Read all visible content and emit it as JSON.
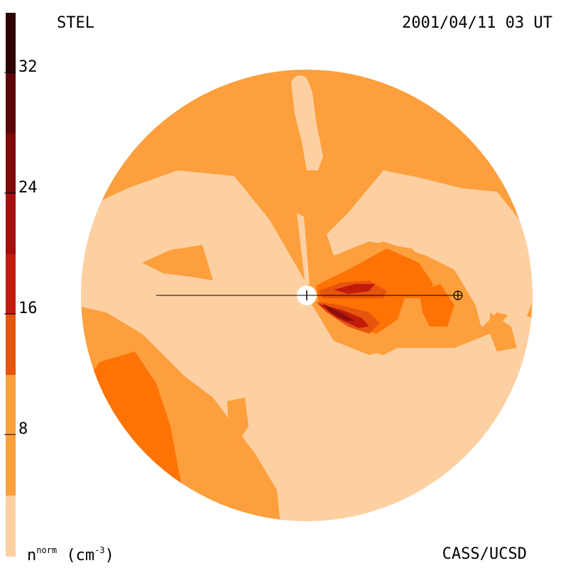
{
  "header": {
    "instrument": "STEL",
    "timestamp": "2001/04/11 03 UT"
  },
  "footer": {
    "credit": "CASS/UCSD",
    "units_base": "n",
    "units_sup": "norm",
    "units_paren_open": " (cm",
    "units_exp": "-3",
    "units_paren_close": ")"
  },
  "colorbar": {
    "tick_labels": [
      "32",
      "24",
      "16",
      "8"
    ],
    "colors": [
      "#fdd0a2",
      "#fd9f3c",
      "#fd7306",
      "#e6550d",
      "#c21b0c",
      "#a50f0f",
      "#7f0a0a",
      "#5a0505",
      "#2d0202"
    ]
  },
  "colors": {
    "level_1": "#fdd0a2",
    "level_2": "#fd9f3c",
    "level_3": "#fd7306",
    "level_4": "#e6550d",
    "level_5": "#c21b0c",
    "level_6": "#8a0f0f",
    "earth_marker": "#000000",
    "sun_marker": "#ffffff"
  }
}
